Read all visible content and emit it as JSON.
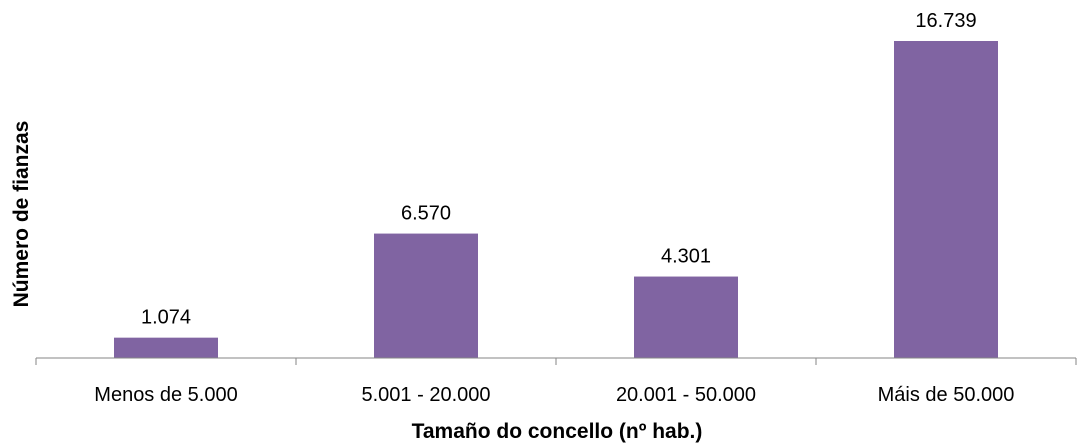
{
  "chart_data": {
    "type": "bar",
    "categories": [
      "Menos de 5.000",
      "5.001 - 20.000",
      "20.001 - 50.000",
      "Máis de 50.000"
    ],
    "values": [
      1074,
      6570,
      4301,
      16739
    ],
    "value_labels": [
      "1.074",
      "6.570",
      "4.301",
      "16.739"
    ],
    "xlabel": "Tamaño do concello (nº hab.)",
    "ylabel": "Número de fianzas",
    "ylim": [
      0,
      16739
    ],
    "grid": false,
    "legend": "none",
    "bar_color": "#8064A2",
    "axis_color": "#868686"
  }
}
